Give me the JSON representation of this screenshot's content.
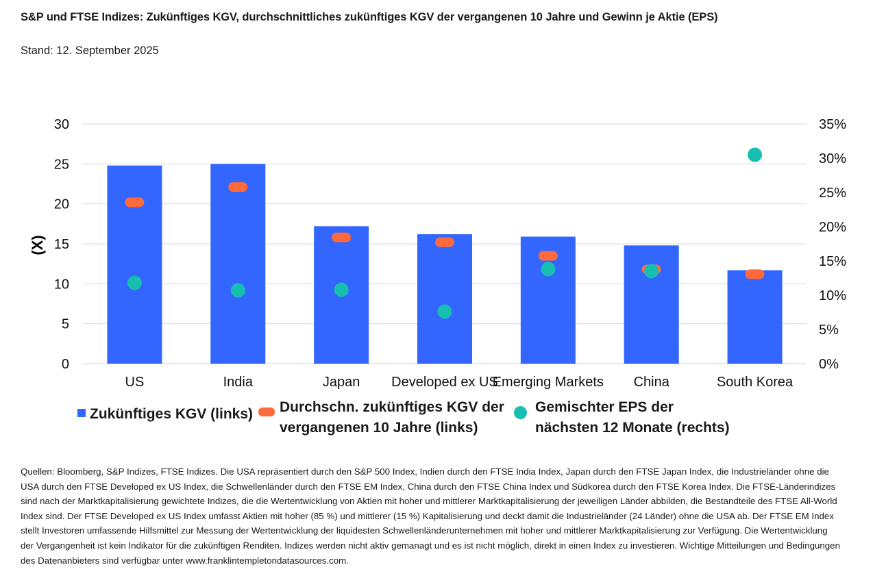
{
  "title": "S&P und FTSE Indizes: Zukünftiges KGV, durchschnittliches zukünftiges KGV der vergangenen 10 Jahre und Gewinn je Aktie (EPS)",
  "subtitle": "Stand: 12. September 2025",
  "chart_data": {
    "type": "bar",
    "categories": [
      "US",
      "India",
      "Japan",
      "Developed ex US",
      "Emerging Markets",
      "China",
      "South Korea"
    ],
    "series": [
      {
        "name": "Zukünftiges KGV (links)",
        "kind": "bar",
        "axis": "left",
        "color": "#3366ff",
        "values": [
          24.8,
          25.0,
          17.2,
          16.2,
          15.9,
          14.8,
          11.7
        ]
      },
      {
        "name": "Durchschn. zukünftiges KGV der vergangenen 10 Jahre (links)",
        "kind": "dash",
        "axis": "left",
        "color": "#ff6a3d",
        "values": [
          20.2,
          22.1,
          15.8,
          15.2,
          13.5,
          11.8,
          11.2
        ]
      },
      {
        "name": "Gemischter EPS der nächsten 12 Monate (rechts)",
        "kind": "dot",
        "axis": "right",
        "color": "#17bfb0",
        "values": [
          11.8,
          10.7,
          10.8,
          7.6,
          13.8,
          13.5,
          30.5
        ]
      }
    ],
    "ylabel": "(X)",
    "ylim": [
      0,
      30
    ],
    "yticks": [
      "0",
      "5",
      "10",
      "15",
      "20",
      "25",
      "30"
    ],
    "y2lim": [
      0,
      35
    ],
    "y2ticks": [
      "0%",
      "5%",
      "10%",
      "15%",
      "20%",
      "25%",
      "30%",
      "35%"
    ],
    "grid": true,
    "legend_position": "bottom"
  },
  "legend": {
    "bar_label": "Zukünftiges KGV (links)",
    "dash_label_line1": "Durchschn. zukünftiges KGV der",
    "dash_label_line2": "vergangenen 10 Jahre (links)",
    "dot_label_line1": "Gemischter EPS der",
    "dot_label_line2": "nächsten 12 Monate (rechts)"
  },
  "footnote": "Quellen: Bloomberg, S&P Indizes, FTSE Indizes. Die USA repräsentiert durch den S&P 500 Index, Indien durch den FTSE India Index, Japan durch den FTSE Japan Index, die Industrieländer ohne die USA durch den FTSE Developed ex US Index, die Schwellenländer durch den FTSE EM Index, China durch den FTSE China Index und Südkorea durch den FTSE Korea Index. Die FTSE-Länderindizes sind nach der Marktkapitalisierung gewichtete Indizes, die die Wertentwicklung von Aktien mit hoher und mittlerer Marktkapitalisierung der jeweiligen Länder abbilden, die Bestandteile des FTSE All-World Index sind. Der FTSE Developed ex US Index umfasst Aktien mit hoher (85 %) und mittlerer (15 %) Kapitalisierung und deckt damit die Industrieländer (24 Länder) ohne die USA ab. Der FTSE EM Index stellt Investoren umfassende Hilfsmittel zur Messung der Wertentwicklung der liquidesten Schwellenländerunternehmen mit hoher und mittlerer Marktkapitalisierung zur Verfügung. Die Wertentwicklung der Vergangenheit ist kein Indikator für die zukünftigen Renditen. Indizes werden nicht aktiv gemanagt und es ist nicht möglich, direkt in einen Index zu investieren. Wichtige Mitteilungen und Bedingungen des Datenanbieters sind verfügbar unter www.franklintempletondatasources.com."
}
